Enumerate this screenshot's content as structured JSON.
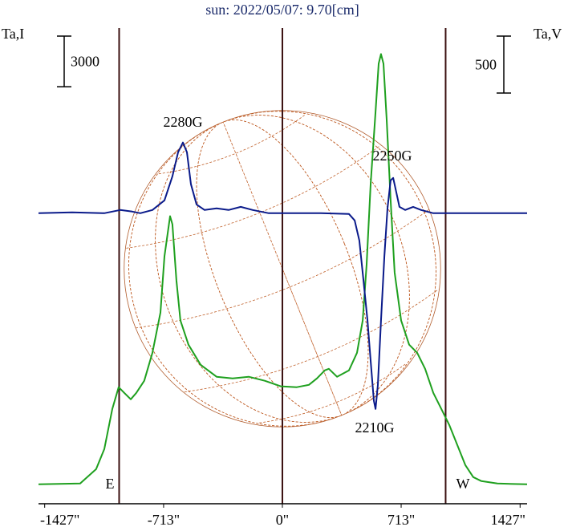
{
  "chart_data": {
    "type": "line",
    "title": "sun: 2022/05/07: 9.70[cm]",
    "ylabel": "Ta,I",
    "y2label": "Ta,V",
    "xlim": [
      -1464,
      1469
    ],
    "xticks": [
      {
        "value": -1427,
        "label": "-1427\""
      },
      {
        "value": -713,
        "label": "-713\""
      },
      {
        "value": 0,
        "label": "0\""
      },
      {
        "value": 713,
        "label": "713\""
      },
      {
        "value": 1427,
        "label": "1427\""
      }
    ],
    "ylim": [
      -1100,
      27100
    ],
    "y2lim": [
      -2550,
      1625
    ],
    "y_scale_bar": 3000,
    "y2_scale_bar": 500,
    "vlines": [
      -980,
      0,
      980
    ],
    "disk_radius": 950,
    "limb_labels": [
      "E",
      "W"
    ],
    "annotations": [
      "2280G",
      "2250G",
      "2210G"
    ],
    "series": [
      {
        "color": "#1fa01f",
        "axis": "y",
        "x": [
          -1464,
          -1214,
          -1118,
          -1069,
          -1021,
          -983,
          -949,
          -910,
          -877,
          -829,
          -780,
          -732,
          -708,
          -674,
          -660,
          -636,
          -612,
          -564,
          -491,
          -395,
          -299,
          -202,
          -106,
          -10,
          87,
          159,
          207,
          255,
          279,
          328,
          400,
          448,
          482,
          506,
          530,
          559,
          578,
          592,
          607,
          626,
          650,
          674,
          713,
          761,
          809,
          857,
          906,
          954,
          1002,
          1050,
          1098,
          1146,
          1195,
          1291,
          1469
        ],
        "values": [
          50,
          100,
          950,
          2140,
          4520,
          5810,
          5470,
          5090,
          5470,
          6190,
          7850,
          10230,
          13570,
          15950,
          15470,
          12140,
          9760,
          8330,
          7140,
          6430,
          6330,
          6430,
          6190,
          5860,
          5810,
          5950,
          6330,
          6810,
          6900,
          6430,
          6810,
          7850,
          9760,
          13090,
          17850,
          22130,
          24990,
          25560,
          24990,
          21660,
          16900,
          12610,
          9760,
          8330,
          7850,
          6900,
          5470,
          4520,
          3570,
          2380,
          1190,
          480,
          240,
          100,
          50
        ]
      },
      {
        "color": "#0a1a8a",
        "axis": "y2",
        "x": [
          -1464,
          -1262,
          -1069,
          -973,
          -901,
          -853,
          -780,
          -708,
          -660,
          -626,
          -597,
          -573,
          -549,
          -515,
          -467,
          -395,
          -323,
          -250,
          -178,
          -82,
          39,
          231,
          400,
          434,
          462,
          487,
          511,
          530,
          549,
          559,
          573,
          592,
          612,
          631,
          650,
          665,
          684,
          703,
          737,
          785,
          833,
          906,
          1002,
          1469
        ],
        "values": [
          0,
          7,
          0,
          28,
          14,
          0,
          28,
          113,
          324,
          535,
          620,
          535,
          254,
          77,
          28,
          42,
          28,
          56,
          28,
          0,
          0,
          0,
          -7,
          -63,
          -239,
          -592,
          -944,
          -1295,
          -1647,
          -1718,
          -1507,
          -944,
          -380,
          42,
          289,
          310,
          183,
          56,
          28,
          56,
          28,
          0,
          0,
          0
        ]
      }
    ]
  }
}
